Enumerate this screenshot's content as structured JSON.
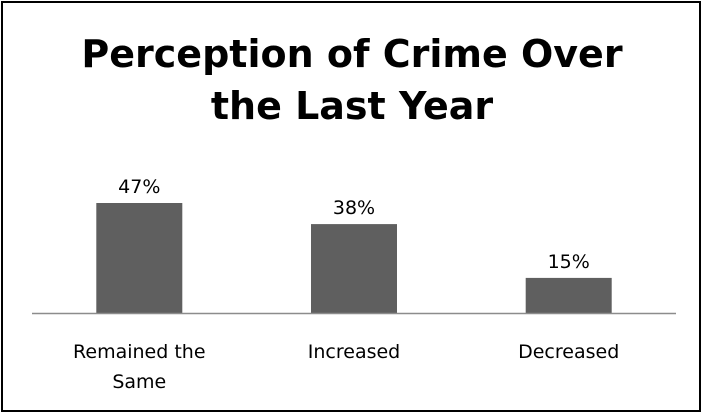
{
  "chart_data": {
    "type": "bar",
    "title_lines": [
      "Perception of Crime Over",
      "the Last Year"
    ],
    "title": "Perception of Crime Over the Last Year",
    "categories": [
      {
        "lines": [
          "Remained the",
          "Same"
        ]
      },
      {
        "lines": [
          "Increased"
        ]
      },
      {
        "lines": [
          "Decreased"
        ]
      }
    ],
    "values": [
      47,
      38,
      15
    ],
    "value_labels": [
      "47%",
      "38%",
      "15%"
    ],
    "unit": "%",
    "xlabel": "",
    "ylabel": "",
    "ylim": [
      0,
      50
    ],
    "grid": false,
    "legend": "none",
    "colors": {
      "bar": "#5f5f5f",
      "axis": "#8c8c8c",
      "border": "#000000"
    }
  }
}
